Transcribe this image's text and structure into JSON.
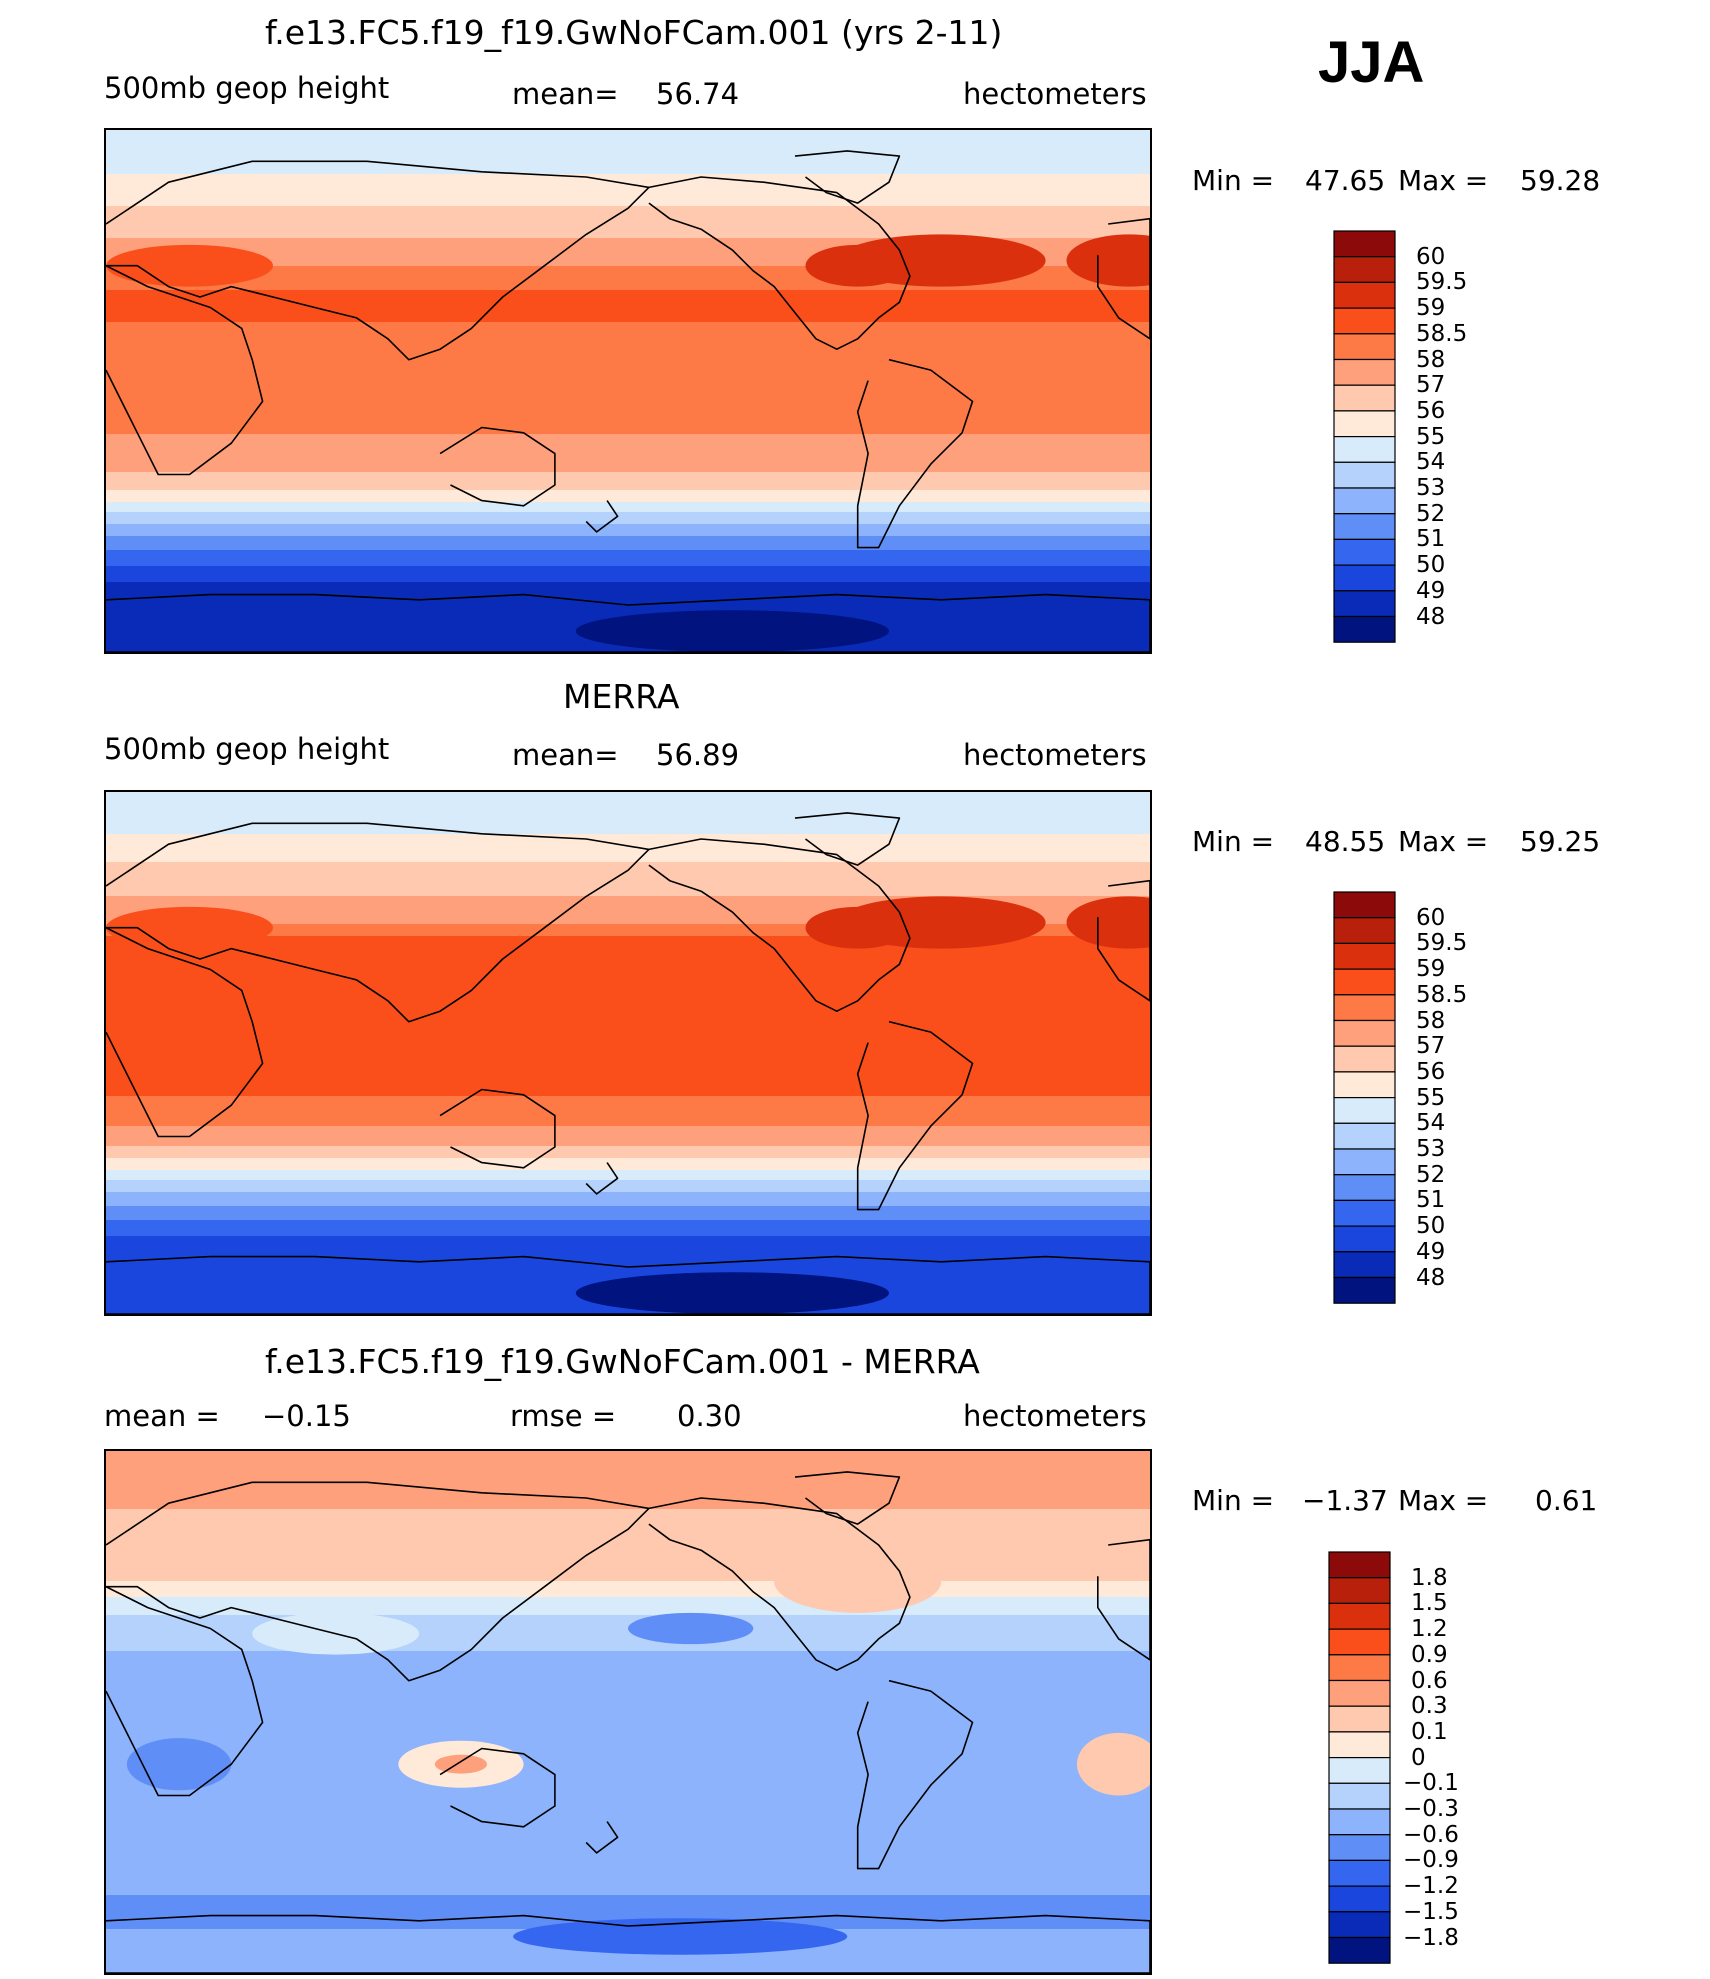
{
  "season": "JJA",
  "coastline_note": "",
  "chart_data": [
    {
      "type": "heatmap",
      "title": "f.e13.FC5.f19_f19.GwNoFCam.001 (yrs 2-11)",
      "variable_label": "500mb geop height",
      "mean_label": "mean=",
      "mean_value": "56.74",
      "units": "hectometers",
      "min_label": "Min =",
      "min_value": "47.65",
      "max_label": "Max =",
      "max_value": "59.28",
      "colorbar_levels": [
        "60",
        "59.5",
        "59",
        "58.5",
        "58",
        "57",
        "56",
        "55",
        "54",
        "53",
        "52",
        "51",
        "50",
        "49",
        "48"
      ],
      "colorbar_colors": [
        "#8c0a0a",
        "#b8200b",
        "#db300e",
        "#fa4f1b",
        "#fd7945",
        "#fea07c",
        "#fec9ae",
        "#ffe9d9",
        "#d8ebfb",
        "#b4d2fc",
        "#8cb3fb",
        "#5f8ef7",
        "#3566f0",
        "#1a46de",
        "#0a2bb8",
        "#00137e"
      ],
      "zonal_profile": [
        {
          "lat": 80,
          "value": 54.5
        },
        {
          "lat": 70,
          "value": 55.5
        },
        {
          "lat": 60,
          "value": 56.3
        },
        {
          "lat": 50,
          "value": 57.3
        },
        {
          "lat": 40,
          "value": 58.3
        },
        {
          "lat": 30,
          "value": 58.7
        },
        {
          "lat": 15,
          "value": 58.2
        },
        {
          "lat": 0,
          "value": 58.1
        },
        {
          "lat": -15,
          "value": 58.0
        },
        {
          "lat": -25,
          "value": 57.4
        },
        {
          "lat": -32,
          "value": 56.5
        },
        {
          "lat": -38,
          "value": 55.0
        },
        {
          "lat": -44,
          "value": 53.5
        },
        {
          "lat": -50,
          "value": 52.0
        },
        {
          "lat": -55,
          "value": 51.0
        },
        {
          "lat": -60,
          "value": 50.0
        },
        {
          "lat": -66,
          "value": 49.0
        },
        {
          "lat": -75,
          "value": 48.2
        }
      ]
    },
    {
      "type": "heatmap",
      "title": "MERRA",
      "variable_label": "500mb geop height",
      "mean_label": "mean=",
      "mean_value": "56.89",
      "units": "hectometers",
      "min_label": "Min =",
      "min_value": "48.55",
      "max_label": "Max =",
      "max_value": "59.25",
      "colorbar_levels": [
        "60",
        "59.5",
        "59",
        "58.5",
        "58",
        "57",
        "56",
        "55",
        "54",
        "53",
        "52",
        "51",
        "50",
        "49",
        "48"
      ],
      "colorbar_colors": [
        "#8c0a0a",
        "#b8200b",
        "#db300e",
        "#fa4f1b",
        "#fd7945",
        "#fea07c",
        "#fec9ae",
        "#ffe9d9",
        "#d8ebfb",
        "#b4d2fc",
        "#8cb3fb",
        "#5f8ef7",
        "#3566f0",
        "#1a46de",
        "#0a2bb8",
        "#00137e"
      ],
      "zonal_profile": [
        {
          "lat": 80,
          "value": 54.5
        },
        {
          "lat": 70,
          "value": 55.6
        },
        {
          "lat": 60,
          "value": 56.5
        },
        {
          "lat": 50,
          "value": 57.4
        },
        {
          "lat": 40,
          "value": 58.5
        },
        {
          "lat": 30,
          "value": 58.8
        },
        {
          "lat": 15,
          "value": 58.6
        },
        {
          "lat": 0,
          "value": 58.6
        },
        {
          "lat": -15,
          "value": 58.5
        },
        {
          "lat": -25,
          "value": 58.0
        },
        {
          "lat": -32,
          "value": 57.0
        },
        {
          "lat": -38,
          "value": 55.5
        },
        {
          "lat": -44,
          "value": 54.0
        },
        {
          "lat": -50,
          "value": 52.5
        },
        {
          "lat": -55,
          "value": 51.5
        },
        {
          "lat": -60,
          "value": 50.5
        },
        {
          "lat": -66,
          "value": 49.5
        },
        {
          "lat": -75,
          "value": 49.0
        }
      ]
    },
    {
      "type": "heatmap",
      "title": "f.e13.FC5.f19_f19.GwNoFCam.001 - MERRA",
      "mean_label": "mean =",
      "mean_value": "−0.15",
      "rmse_label": "rmse =",
      "rmse_value": "0.30",
      "units": "hectometers",
      "min_label": "Min =",
      "min_value": "−1.37",
      "max_label": "Max =",
      "max_value": "0.61",
      "colorbar_levels": [
        "1.8",
        "1.5",
        "1.2",
        "0.9",
        "0.6",
        "0.3",
        "0.1",
        "0",
        "−0.1",
        "−0.3",
        "−0.6",
        "−0.9",
        "−1.2",
        "−1.5",
        "−1.8"
      ],
      "colorbar_colors": [
        "#8c0a0a",
        "#b8200b",
        "#db300e",
        "#fa4f1b",
        "#fd7945",
        "#fea07c",
        "#fec9ae",
        "#ffe9d9",
        "#d8ebfb",
        "#b4d2fc",
        "#8cb3fb",
        "#5f8ef7",
        "#3566f0",
        "#1a46de",
        "#0a2bb8",
        "#00137e"
      ],
      "zonal_profile": [
        {
          "lat": 80,
          "value": 0.35
        },
        {
          "lat": 70,
          "value": 0.3
        },
        {
          "lat": 60,
          "value": 0.15
        },
        {
          "lat": 50,
          "value": 0.2
        },
        {
          "lat": 40,
          "value": 0.0
        },
        {
          "lat": 30,
          "value": -0.15
        },
        {
          "lat": 15,
          "value": -0.4
        },
        {
          "lat": 0,
          "value": -0.45
        },
        {
          "lat": -15,
          "value": -0.45
        },
        {
          "lat": -25,
          "value": -0.45
        },
        {
          "lat": -32,
          "value": -0.35
        },
        {
          "lat": -40,
          "value": -0.4
        },
        {
          "lat": -50,
          "value": -0.5
        },
        {
          "lat": -60,
          "value": -0.55
        },
        {
          "lat": -70,
          "value": -0.7
        },
        {
          "lat": -80,
          "value": -0.5
        }
      ]
    }
  ]
}
